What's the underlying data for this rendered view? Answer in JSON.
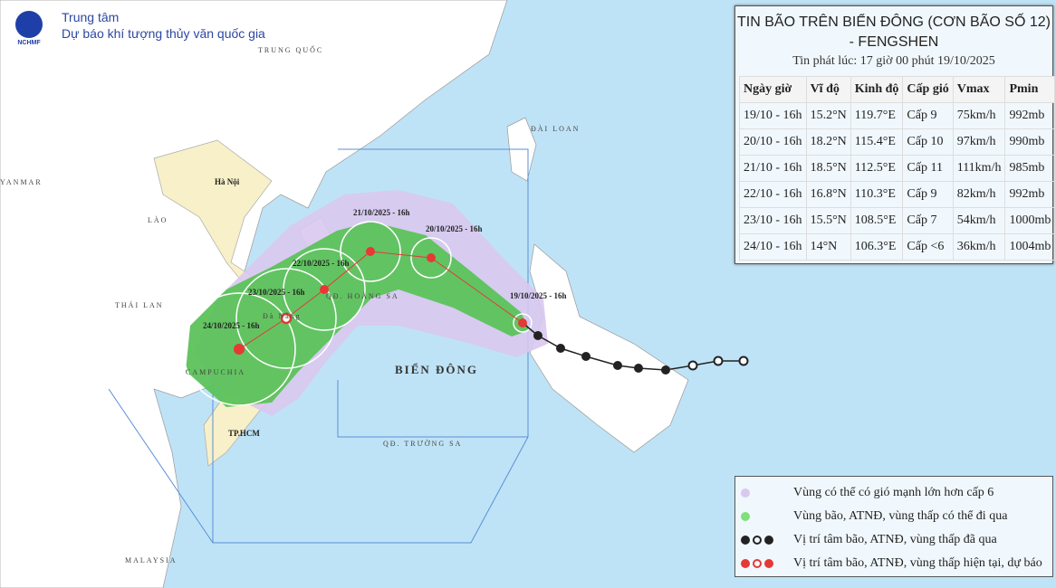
{
  "header": {
    "logo_text": "NCHMF",
    "org_line1": "Trung tâm",
    "org_line2": "Dự báo khí tượng thủy văn quốc gia"
  },
  "map": {
    "labels": {
      "china": "TRUNG QUỐC",
      "myanmar": "YANMAR",
      "laos": "LÀO",
      "hanoi": "Hà Nội",
      "thailand": "THÁI LAN",
      "cambodia": "CAMPUCHIA",
      "hcm": "TP.HCM",
      "danang": "Đà Nẵng",
      "taiwan": "ĐÀI LOAN",
      "sea": "BIỂN ĐÔNG",
      "paracel": "QĐ. HOÀNG SA",
      "spratly": "QĐ. TRƯỜNG SA",
      "malaysia": "MALAYSIA"
    },
    "track_labels": [
      "19/10/2025 - 16h",
      "20/10/2025 - 16h",
      "21/10/2025 - 16h",
      "22/10/2025 - 16h",
      "23/10/2025 - 16h",
      "24/10/2025 - 16h"
    ],
    "colors": {
      "ocean": "#bfe3f6",
      "strong_wind_zone": "#d9c8f0",
      "storm_zone": "#5cc25a",
      "forecast": "#e53935",
      "past": "#222222",
      "vietnam": "#f7f0c8"
    }
  },
  "bulletin": {
    "title": "TIN BÃO TRÊN BIỂN ĐÔNG (CƠN BÃO SỐ 12) - FENGSHEN",
    "issued": "Tin phát lúc: 17 giờ 00 phút 19/10/2025",
    "columns": [
      "Ngày giờ",
      "Vĩ độ",
      "Kinh độ",
      "Cấp gió",
      "Vmax",
      "Pmin"
    ],
    "rows": [
      [
        "19/10 - 16h",
        "15.2°N",
        "119.7°E",
        "Cấp 9",
        "75km/h",
        "992mb"
      ],
      [
        "20/10 - 16h",
        "18.2°N",
        "115.4°E",
        "Cấp 10",
        "97km/h",
        "990mb"
      ],
      [
        "21/10 - 16h",
        "18.5°N",
        "112.5°E",
        "Cấp 11",
        "111km/h",
        "985mb"
      ],
      [
        "22/10 - 16h",
        "16.8°N",
        "110.3°E",
        "Cấp 9",
        "82km/h",
        "992mb"
      ],
      [
        "23/10 - 16h",
        "15.5°N",
        "108.5°E",
        "Cấp 7",
        "54km/h",
        "1000mb"
      ],
      [
        "24/10 - 16h",
        "14°N",
        "106.3°E",
        "Cấp <6",
        "36km/h",
        "1004mb"
      ]
    ]
  },
  "legend": [
    {
      "icon": "purple-dot",
      "text": "Vùng có thể có gió mạnh lớn hơn cấp 6"
    },
    {
      "icon": "green-dot",
      "text": "Vùng bão, ATNĐ, vùng thấp có thể đi qua"
    },
    {
      "icon": "past-storm-icons",
      "text": "Vị trí tâm bão, ATNĐ, vùng thấp đã qua"
    },
    {
      "icon": "forecast-storm-icons",
      "text": "Vị trí tâm bão, ATNĐ, vùng thấp hiện tại, dự báo"
    }
  ]
}
